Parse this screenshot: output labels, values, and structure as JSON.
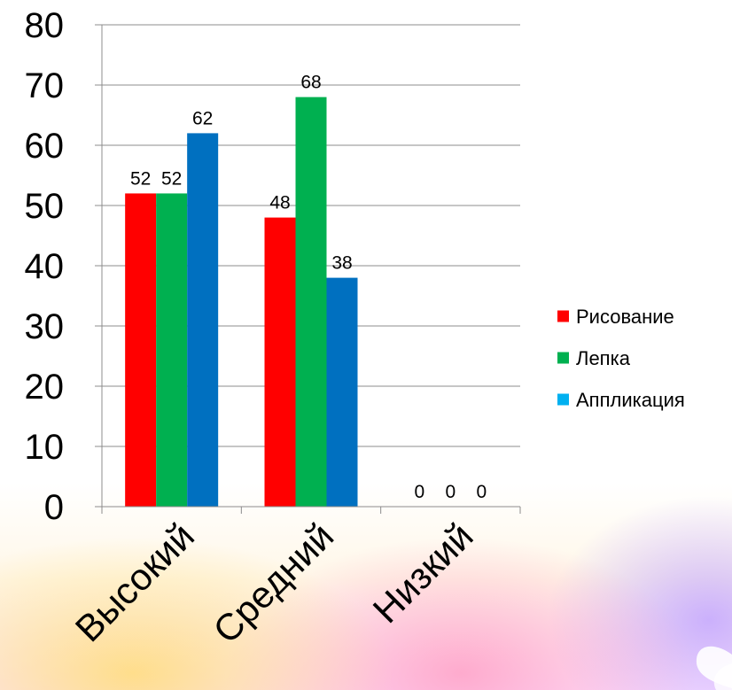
{
  "chart_data": {
    "type": "bar",
    "categories": [
      "Высокий",
      "Средний",
      "Низкий"
    ],
    "series": [
      {
        "name": "Рисование",
        "color": "#ff0000",
        "values": [
          52,
          48,
          0
        ]
      },
      {
        "name": "Лепка",
        "color": "#00b050",
        "values": [
          52,
          68,
          0
        ]
      },
      {
        "name": "Аппликация",
        "color": "#0070c0",
        "legend_color": "#00b0f0",
        "values": [
          62,
          38,
          0
        ]
      }
    ],
    "y_ticks": [
      "0",
      "10",
      "20",
      "30",
      "40",
      "50",
      "60",
      "70",
      "80"
    ],
    "ylim": [
      0,
      80
    ],
    "grid": true,
    "legend": "right",
    "data_labels": true
  }
}
